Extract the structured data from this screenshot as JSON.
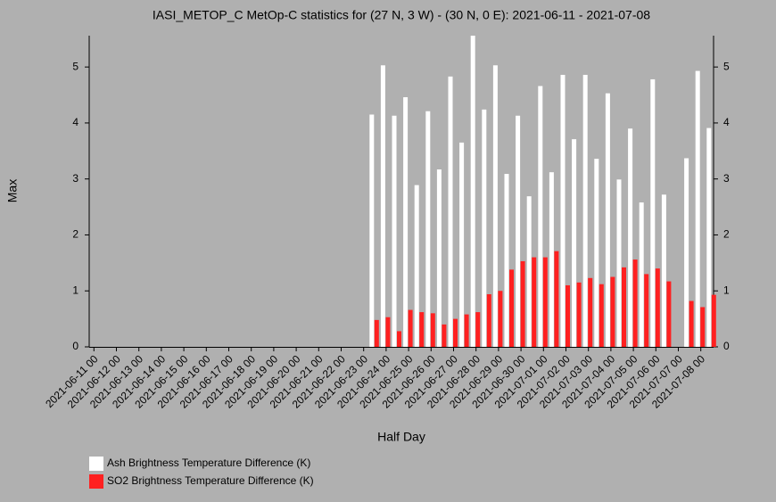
{
  "chart_data": {
    "type": "bar",
    "title": "IASI_METOP_C MetOp-C statistics for (27 N, 3 W) - (30 N, 0 E): 2021-06-11 - 2021-07-08",
    "xlabel": "Half Day",
    "ylabel": "Max",
    "categories": [
      "2021-06-11 00",
      null,
      "2021-06-12 00",
      null,
      "2021-06-13 00",
      null,
      "2021-06-14 00",
      null,
      "2021-06-15 00",
      null,
      "2021-06-16 00",
      null,
      "2021-06-17 00",
      null,
      "2021-06-18 00",
      null,
      "2021-06-19 00",
      null,
      "2021-06-20 00",
      null,
      "2021-06-21 00",
      null,
      "2021-06-22 00",
      null,
      "2021-06-23 00",
      null,
      "2021-06-24 00",
      null,
      "2021-06-25 00",
      null,
      "2021-06-26 00",
      null,
      "2021-06-27 00",
      null,
      "2021-06-28 00",
      null,
      "2021-06-29 00",
      null,
      "2021-06-30 00",
      null,
      "2021-07-01 00",
      null,
      "2021-07-02 00",
      null,
      "2021-07-03 00",
      null,
      "2021-07-04 00",
      null,
      "2021-07-05 00",
      null,
      "2021-07-06 00",
      null,
      "2021-07-07 00",
      null,
      "2021-07-08 00",
      null
    ],
    "series": [
      {
        "name": "Ash Brightness Temperature Difference (K)",
        "color": "#ffffff",
        "values": [
          null,
          null,
          null,
          null,
          null,
          null,
          null,
          null,
          null,
          null,
          null,
          null,
          null,
          null,
          null,
          null,
          null,
          null,
          null,
          null,
          null,
          null,
          null,
          null,
          null,
          4.15,
          5.03,
          4.13,
          4.46,
          2.89,
          4.21,
          3.17,
          4.83,
          3.65,
          5.56,
          4.24,
          5.03,
          3.09,
          4.13,
          2.69,
          4.66,
          3.12,
          4.86,
          3.71,
          4.86,
          3.36,
          4.53,
          2.99,
          3.9,
          2.58,
          4.78,
          2.72,
          null,
          3.37,
          4.93,
          3.91
        ]
      },
      {
        "name": "SO2 Brightness Temperature Difference (K)",
        "color": "#ff2020",
        "values": [
          null,
          null,
          null,
          null,
          null,
          null,
          null,
          null,
          null,
          null,
          null,
          null,
          null,
          null,
          null,
          null,
          null,
          null,
          null,
          null,
          null,
          null,
          null,
          null,
          null,
          0.48,
          0.53,
          0.28,
          0.66,
          0.62,
          0.6,
          0.4,
          0.5,
          0.58,
          0.62,
          0.94,
          1.0,
          1.38,
          1.53,
          1.6,
          1.6,
          1.71,
          1.1,
          1.15,
          1.23,
          1.12,
          1.25,
          1.42,
          1.56,
          1.3,
          1.4,
          1.17,
          null,
          0.82,
          0.71,
          0.93
        ]
      }
    ],
    "ylim": [
      0,
      5.56
    ],
    "yticks": [
      0,
      1,
      2,
      3,
      4,
      5
    ],
    "grid": false
  }
}
